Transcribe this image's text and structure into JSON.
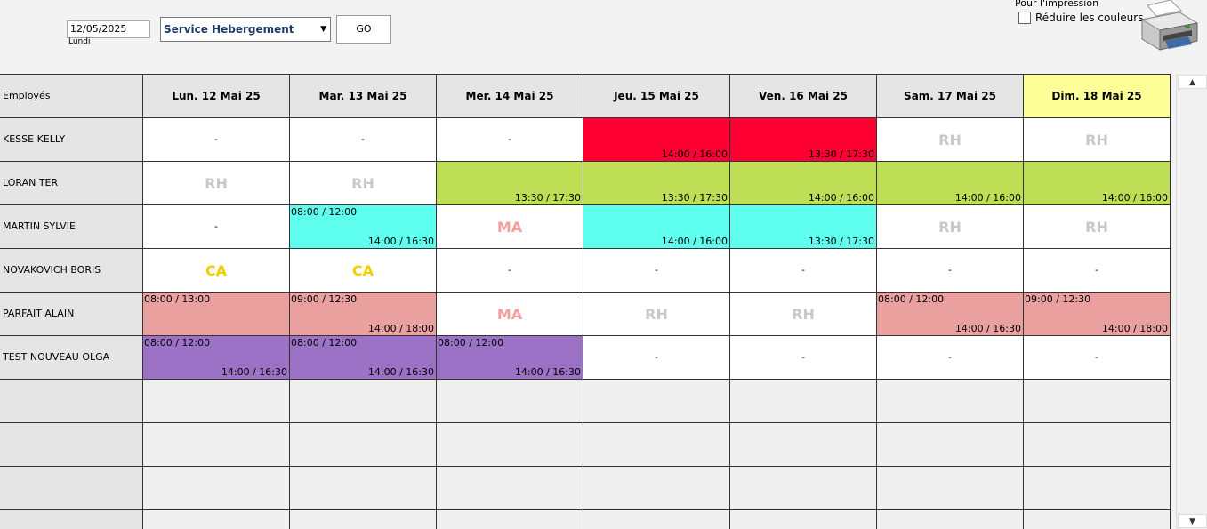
{
  "toolbar": {
    "date_value": "12/05/2025",
    "day_label": "Lundi",
    "service_value": "Service Hebergement",
    "go_label": "GO",
    "print_title": "Pour l'impression",
    "reduce_colors_label": "Réduire les couleurs",
    "reduce_colors_checked": false
  },
  "grid": {
    "employees_header": "Employés",
    "days": [
      "Lun. 12 Mai 25",
      "Mar. 13 Mai 25",
      "Mer. 14 Mai 25",
      "Jeu. 15 Mai 25",
      "Ven. 16 Mai 25",
      "Sam. 17 Mai 25",
      "Dim. 18 Mai 25"
    ],
    "highlight_day_color": "#ffff99",
    "rows": [
      {
        "name": "KESSE KELLY",
        "cells": [
          {
            "t": "-"
          },
          {
            "t": "-"
          },
          {
            "t": "-"
          },
          {
            "pm": "14:00 / 16:00",
            "bg": "#ff0033"
          },
          {
            "pm": "13:30 / 17:30",
            "bg": "#ff0033"
          },
          {
            "code": "RH",
            "color": "#c8c8c8"
          },
          {
            "code": "RH",
            "color": "#c8c8c8"
          }
        ]
      },
      {
        "name": "LORAN TER",
        "cells": [
          {
            "code": "RH",
            "color": "#c8c8c8"
          },
          {
            "code": "RH",
            "color": "#c8c8c8"
          },
          {
            "pm": "13:30 / 17:30",
            "bg": "#bedf55"
          },
          {
            "pm": "13:30 / 17:30",
            "bg": "#bedf55"
          },
          {
            "pm": "14:00 / 16:00",
            "bg": "#bedf55"
          },
          {
            "pm": "14:00 / 16:00",
            "bg": "#bedf55"
          },
          {
            "pm": "14:00 / 16:00",
            "bg": "#bedf55"
          }
        ]
      },
      {
        "name": "MARTIN SYLVIE",
        "cells": [
          {
            "t": "-"
          },
          {
            "am": "08:00 / 12:00",
            "pm": "14:00 / 16:30",
            "bg": "#5effef"
          },
          {
            "code": "MA",
            "color": "#f2a0a0"
          },
          {
            "pm": "14:00 / 16:00",
            "bg": "#5effef"
          },
          {
            "pm": "13:30 / 17:30",
            "bg": "#5effef"
          },
          {
            "code": "RH",
            "color": "#c8c8c8"
          },
          {
            "code": "RH",
            "color": "#c8c8c8"
          }
        ]
      },
      {
        "name": "NOVAKOVICH BORIS",
        "cells": [
          {
            "code": "CA",
            "color": "#f5cc00"
          },
          {
            "code": "CA",
            "color": "#f5cc00"
          },
          {
            "t": "-"
          },
          {
            "t": "-"
          },
          {
            "t": "-"
          },
          {
            "t": "-"
          },
          {
            "t": "-"
          }
        ]
      },
      {
        "name": "PARFAIT ALAIN",
        "cells": [
          {
            "am": "08:00 / 13:00",
            "bg": "#eba0a0"
          },
          {
            "am": "09:00 / 12:30",
            "pm": "14:00 / 18:00",
            "bg": "#eba0a0"
          },
          {
            "code": "MA",
            "color": "#f2a0a0"
          },
          {
            "code": "RH",
            "color": "#c8c8c8"
          },
          {
            "code": "RH",
            "color": "#c8c8c8"
          },
          {
            "am": "08:00 / 12:00",
            "pm": "14:00 / 16:30",
            "bg": "#eba0a0"
          },
          {
            "am": "09:00 / 12:30",
            "pm": "14:00 / 18:00",
            "bg": "#eba0a0"
          }
        ]
      },
      {
        "name": "TEST NOUVEAU OLGA",
        "cells": [
          {
            "am": "08:00 / 12:00",
            "pm": "14:00 / 16:30",
            "bg": "#9b72c6"
          },
          {
            "am": "08:00 / 12:00",
            "pm": "14:00 / 16:30",
            "bg": "#9b72c6"
          },
          {
            "am": "08:00 / 12:00",
            "pm": "14:00 / 16:30",
            "bg": "#9b72c6"
          },
          {
            "t": "-"
          },
          {
            "t": "-"
          },
          {
            "t": "-"
          },
          {
            "t": "-"
          }
        ]
      }
    ],
    "empty_rows": 4
  },
  "icons": {
    "calendar": "calendar-icon",
    "printer": "printer-icon",
    "dropdown": "chevron-down-icon",
    "scroll_up": "arrow-up-icon",
    "scroll_down": "arrow-down-icon"
  }
}
